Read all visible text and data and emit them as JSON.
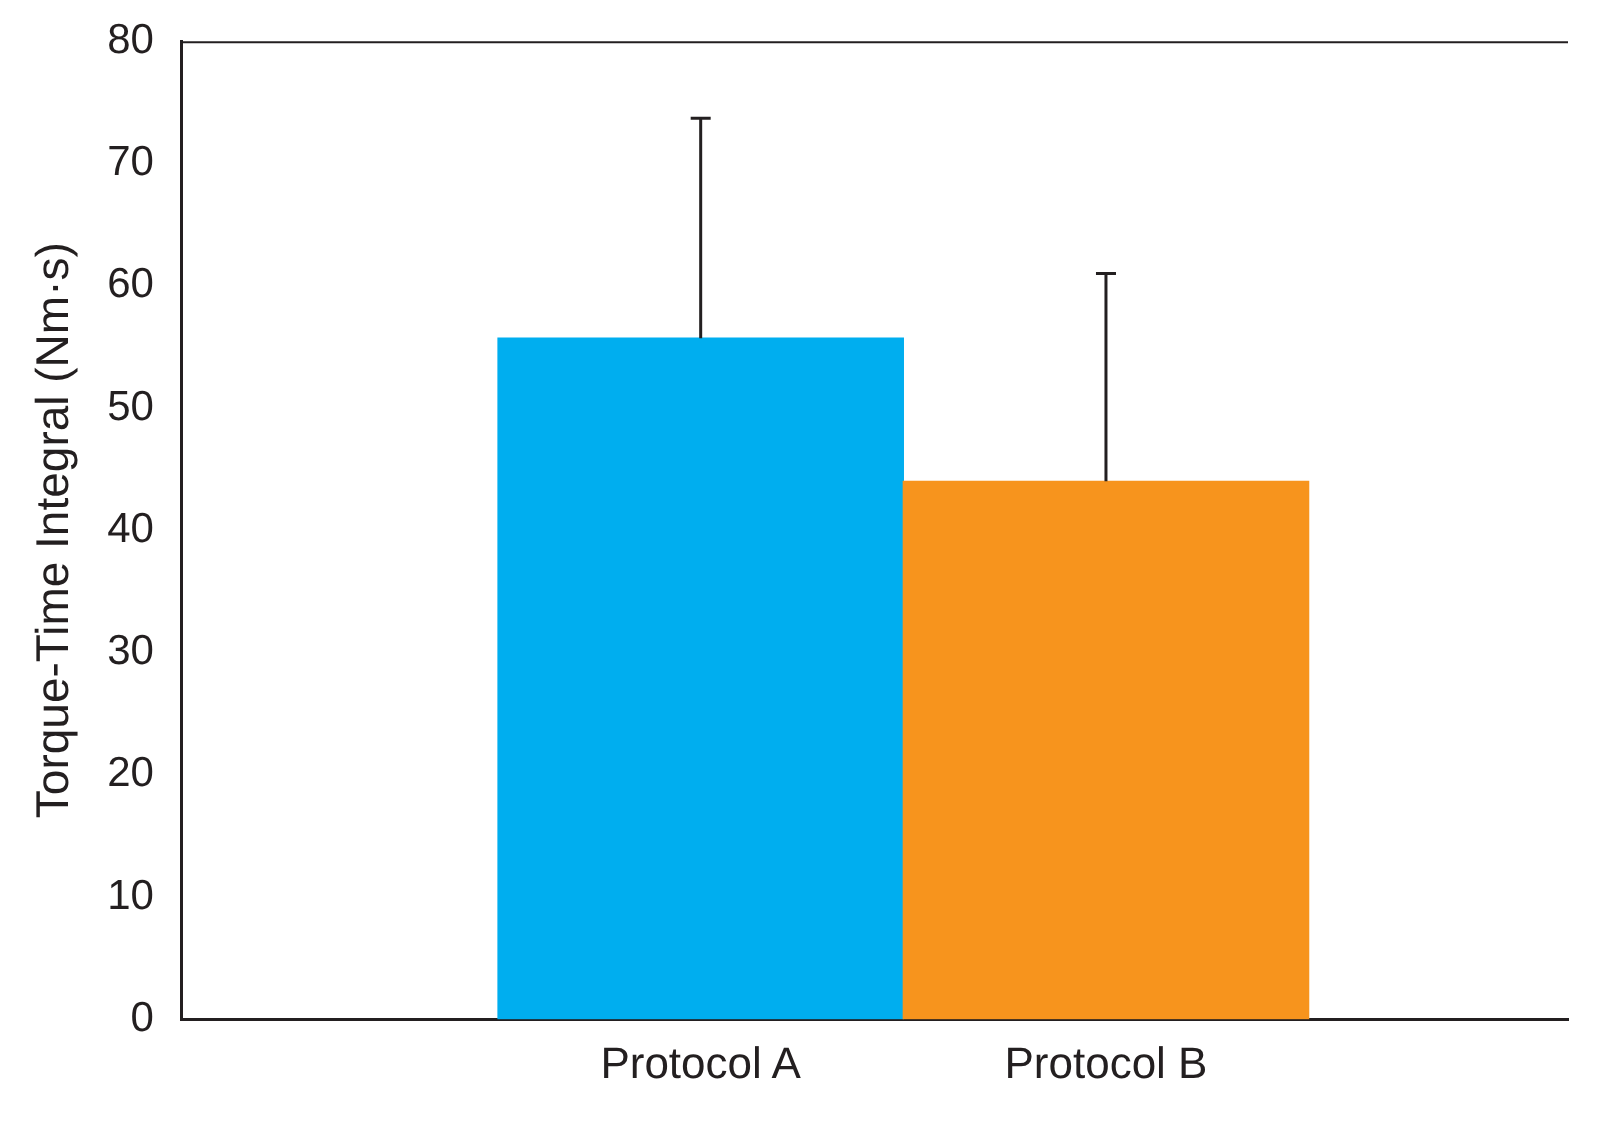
{
  "chart_data": {
    "type": "bar",
    "ylabel": "Torque-Time Integral (Nm·s)",
    "categories": [
      "Protocol A",
      "Protocol B"
    ],
    "values": [
      55.7,
      44
    ],
    "colors": [
      "#00aeef",
      "#f7941d"
    ],
    "errors": [
      [
        55.7,
        73.7
      ],
      [
        44,
        61
      ]
    ],
    "ylim": [
      0,
      80
    ],
    "yticks": [
      0,
      10,
      20,
      30,
      40,
      50,
      60,
      70,
      80
    ],
    "grid": false,
    "legend": false
  }
}
